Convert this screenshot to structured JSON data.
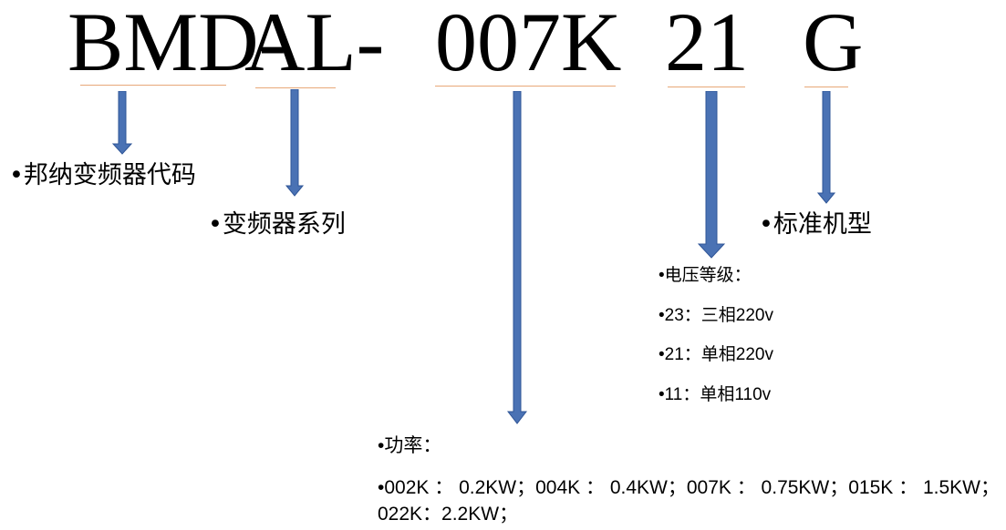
{
  "code_parts": [
    "BMD-",
    "AL-",
    "007K",
    "21",
    "G"
  ],
  "labels": {
    "vendor": "•邦纳变频器代码",
    "series": "•变频器系列",
    "model": "•标准机型",
    "voltage_title": "•电压等级：",
    "voltage_items": [
      "•23：三相220v",
      "•21：单相220v",
      "•11：单相110v"
    ],
    "power_title": "•功率：",
    "power_text": "•002K：0.2KW；004K：0.4KW；007K：0.75KW；015K：1.5KW；022K：2.2KW；"
  },
  "colors": {
    "arrow_fill": "#4a72b4",
    "arrow_stroke": "#2f5597",
    "underline": "#e8a878",
    "text": "#000000"
  }
}
